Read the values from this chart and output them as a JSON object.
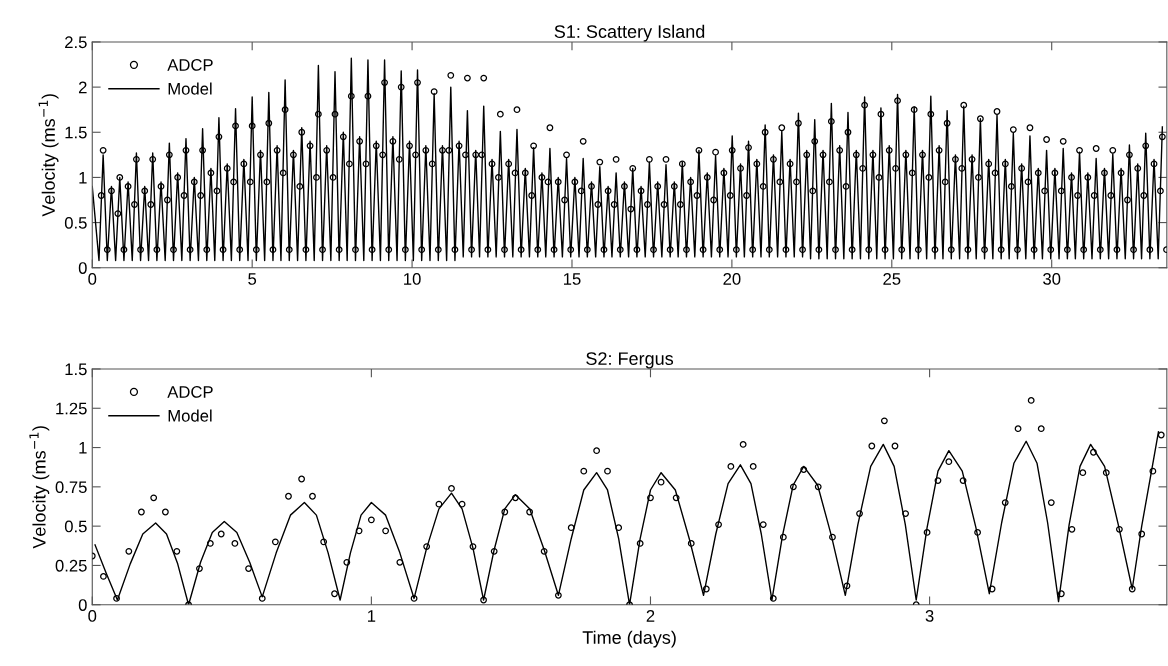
{
  "chart_data": [
    {
      "type": "line",
      "title": "S1: Scattery Island",
      "ylabel": "Velocity (ms$^{−1}$)",
      "xlim": [
        0,
        33.6
      ],
      "xticks": [
        0,
        5,
        10,
        15,
        20,
        25,
        30
      ],
      "ylim": [
        0,
        2.5
      ],
      "yticks": [
        0,
        0.5,
        1,
        1.5,
        2,
        2.5
      ],
      "legend": "top left",
      "series": [
        {
          "name": "ADCP",
          "type": "scatter",
          "marker": "circle",
          "color": "#000000",
          "x": [
            0.28,
            0.34,
            0.47,
            0.6,
            0.8,
            0.86,
            0.99,
            1.12,
            1.32,
            1.38,
            1.51,
            1.64,
            1.83,
            1.89,
            2.02,
            2.15,
            2.35,
            2.41,
            2.54,
            2.67,
            2.87,
            2.93,
            3.06,
            3.19,
            3.39,
            3.45,
            3.58,
            3.71,
            3.9,
            3.96,
            4.09,
            4.22,
            4.42,
            4.48,
            4.61,
            4.74,
            4.94,
            5.0,
            5.13,
            5.26,
            5.46,
            5.52,
            5.65,
            5.78,
            5.97,
            6.03,
            6.16,
            6.29,
            6.49,
            6.55,
            6.68,
            6.81,
            7.01,
            7.07,
            7.2,
            7.33,
            7.53,
            7.59,
            7.72,
            7.85,
            8.04,
            8.1,
            8.23,
            8.36,
            8.56,
            8.62,
            8.75,
            8.88,
            9.08,
            9.14,
            9.27,
            9.4,
            9.6,
            9.66,
            9.79,
            9.92,
            10.11,
            10.17,
            10.3,
            10.43,
            10.63,
            10.69,
            10.82,
            10.95,
            11.15,
            11.21,
            11.34,
            11.47,
            11.67,
            11.73,
            11.86,
            11.99,
            12.18,
            12.24,
            12.37,
            12.5,
            12.7,
            12.76,
            12.89,
            13.02,
            13.22,
            13.28,
            13.41,
            13.54,
            13.74,
            13.8,
            13.93,
            14.06,
            14.25,
            14.31,
            14.44,
            14.57,
            14.77,
            14.83,
            14.96,
            15.09,
            15.29,
            15.35,
            15.48,
            15.61,
            15.81,
            15.87,
            16.0,
            16.13,
            16.32,
            16.38,
            16.51,
            16.64,
            16.84,
            16.9,
            17.03,
            17.16,
            17.36,
            17.42,
            17.55,
            17.68,
            17.88,
            17.94,
            18.07,
            18.2,
            18.39,
            18.45,
            18.58,
            18.71,
            18.91,
            18.97,
            19.1,
            19.23,
            19.43,
            19.49,
            19.62,
            19.75,
            19.95,
            20.01,
            20.14,
            20.27,
            20.46,
            20.52,
            20.65,
            20.78,
            20.98,
            21.04,
            21.17,
            21.3,
            21.5,
            21.56,
            21.69,
            21.82,
            22.02,
            22.08,
            22.21,
            22.34,
            22.53,
            22.59,
            22.72,
            22.85,
            23.05,
            23.11,
            23.24,
            23.37,
            23.57,
            23.63,
            23.76,
            23.89,
            24.09,
            24.15,
            24.28,
            24.41,
            24.6,
            24.66,
            24.79,
            24.92,
            25.12,
            25.18,
            25.31,
            25.44,
            25.64,
            25.7,
            25.83,
            25.96,
            26.16,
            26.22,
            26.35,
            26.48,
            26.67,
            26.73,
            26.86,
            26.99,
            27.19,
            27.25,
            27.38,
            27.51,
            27.71,
            27.77,
            27.9,
            28.03,
            28.23,
            28.29,
            28.42,
            28.55,
            28.74,
            28.8,
            28.93,
            29.06,
            29.26,
            29.32,
            29.45,
            29.58,
            29.78,
            29.84,
            29.97,
            30.1,
            30.3,
            30.36,
            30.49,
            30.62,
            30.81,
            30.87,
            31.0,
            31.13,
            31.33,
            31.39,
            31.52,
            31.65,
            31.85,
            31.91,
            32.04,
            32.17,
            32.37,
            32.43,
            32.56,
            32.69,
            32.88,
            32.94,
            33.07,
            33.2,
            33.4,
            33.46,
            33.59
          ],
          "values": [
            0.8,
            1.3,
            0.2,
            0.85,
            0.6,
            1.0,
            0.2,
            0.9,
            0.7,
            1.2,
            0.2,
            0.85,
            0.7,
            1.2,
            0.2,
            0.9,
            0.75,
            1.25,
            0.2,
            1.0,
            0.8,
            1.3,
            0.2,
            0.95,
            0.8,
            1.3,
            0.2,
            1.05,
            0.85,
            1.45,
            0.2,
            1.1,
            0.95,
            1.57,
            0.2,
            1.15,
            0.95,
            1.57,
            0.2,
            1.25,
            0.95,
            1.6,
            0.2,
            1.3,
            1.05,
            1.75,
            0.2,
            1.25,
            0.9,
            1.5,
            0.2,
            1.35,
            1.0,
            1.7,
            0.2,
            1.3,
            1.0,
            1.7,
            0.2,
            1.45,
            1.15,
            1.9,
            0.2,
            1.4,
            1.15,
            1.9,
            0.2,
            1.35,
            1.25,
            2.05,
            0.2,
            1.4,
            1.2,
            2.0,
            0.2,
            1.35,
            1.25,
            2.05,
            0.2,
            1.3,
            1.15,
            1.95,
            0.2,
            1.3,
            1.3,
            2.13,
            0.2,
            1.35,
            1.25,
            2.1,
            0.2,
            1.25,
            1.25,
            2.1,
            0.2,
            1.15,
            1.0,
            1.7,
            0.2,
            1.15,
            1.05,
            1.75,
            0.2,
            1.05,
            0.8,
            1.35,
            0.2,
            1.0,
            0.95,
            1.55,
            0.2,
            0.95,
            0.75,
            1.25,
            0.2,
            0.95,
            0.85,
            1.4,
            0.2,
            0.9,
            0.7,
            1.17,
            0.2,
            0.85,
            0.7,
            1.2,
            0.2,
            0.9,
            0.65,
            1.1,
            0.2,
            0.85,
            0.7,
            1.2,
            0.2,
            0.9,
            0.7,
            1.2,
            0.2,
            0.9,
            0.7,
            1.15,
            0.2,
            0.95,
            0.8,
            1.3,
            0.2,
            1.0,
            0.75,
            1.28,
            0.2,
            1.05,
            0.8,
            1.3,
            0.2,
            1.1,
            0.8,
            1.33,
            0.2,
            1.15,
            0.9,
            1.5,
            0.2,
            1.2,
            0.95,
            1.55,
            0.2,
            1.15,
            0.95,
            1.6,
            0.2,
            1.25,
            0.85,
            1.4,
            0.2,
            1.25,
            0.95,
            1.62,
            0.2,
            1.3,
            0.9,
            1.5,
            0.2,
            1.25,
            1.1,
            1.8,
            0.2,
            1.25,
            1.0,
            1.7,
            0.2,
            1.3,
            1.1,
            1.85,
            0.2,
            1.25,
            1.05,
            1.75,
            0.2,
            1.25,
            1.0,
            1.7,
            0.2,
            1.3,
            0.95,
            1.6,
            0.2,
            1.2,
            1.1,
            1.8,
            0.2,
            1.2,
            1.0,
            1.65,
            0.2,
            1.15,
            1.05,
            1.73,
            0.2,
            1.15,
            0.9,
            1.53,
            0.2,
            1.1,
            0.95,
            1.55,
            0.2,
            1.05,
            0.85,
            1.42,
            0.2,
            1.05,
            0.85,
            1.4,
            0.2,
            1.0,
            0.8,
            1.3,
            0.2,
            1.0,
            0.8,
            1.32,
            0.2,
            1.05,
            0.8,
            1.3,
            0.2,
            1.05,
            0.75,
            1.25,
            0.2,
            1.1,
            0.8,
            1.35,
            0.2,
            1.15,
            0.85,
            1.45,
            0.2
          ]
        },
        {
          "name": "Model",
          "type": "line",
          "line_style": "solid",
          "color": "#000000",
          "x": [
            0.0,
            0.21,
            0.34,
            0.47,
            0.6,
            0.73,
            0.86,
            0.99,
            1.12,
            1.25,
            1.38,
            1.51,
            1.64,
            1.76,
            1.89,
            2.02,
            2.15,
            2.28,
            2.41,
            2.54,
            2.67,
            2.8,
            2.93,
            3.06,
            3.19,
            3.32,
            3.45,
            3.58,
            3.71,
            3.83,
            3.96,
            4.09,
            4.22,
            4.35,
            4.48,
            4.61,
            4.74,
            4.87,
            5.0,
            5.13,
            5.26,
            5.39,
            5.52,
            5.65,
            5.78,
            5.9,
            6.03,
            6.16,
            6.29,
            6.42,
            6.55,
            6.68,
            6.81,
            6.94,
            7.07,
            7.2,
            7.33,
            7.46,
            7.59,
            7.72,
            7.85,
            7.97,
            8.1,
            8.23,
            8.36,
            8.49,
            8.62,
            8.75,
            8.88,
            9.01,
            9.14,
            9.27,
            9.4,
            9.53,
            9.66,
            9.79,
            9.92,
            10.04,
            10.17,
            10.3,
            10.43,
            10.56,
            10.69,
            10.82,
            10.95,
            11.08,
            11.21,
            11.34,
            11.47,
            11.6,
            11.73,
            11.86,
            11.99,
            12.11,
            12.24,
            12.37,
            12.5,
            12.63,
            12.76,
            12.89,
            13.02,
            13.15,
            13.28,
            13.41,
            13.54,
            13.67,
            13.8,
            13.93,
            14.06,
            14.18,
            14.31,
            14.44,
            14.57,
            14.7,
            14.83,
            14.96,
            15.09,
            15.22,
            15.35,
            15.48,
            15.61,
            15.74,
            15.87,
            16.0,
            16.13,
            16.25,
            16.38,
            16.51,
            16.64,
            16.77,
            16.9,
            17.03,
            17.16,
            17.29,
            17.42,
            17.55,
            17.68,
            17.81,
            17.94,
            18.07,
            18.2,
            18.32,
            18.45,
            18.58,
            18.71,
            18.84,
            18.97,
            19.1,
            19.23,
            19.36,
            19.49,
            19.62,
            19.75,
            19.88,
            20.01,
            20.14,
            20.27,
            20.39,
            20.52,
            20.65,
            20.78,
            20.91,
            21.04,
            21.17,
            21.3,
            21.43,
            21.56,
            21.69,
            21.82,
            21.95,
            22.08,
            22.21,
            22.34,
            22.46,
            22.59,
            22.72,
            22.85,
            22.98,
            23.11,
            23.24,
            23.37,
            23.5,
            23.63,
            23.76,
            23.89,
            24.02,
            24.15,
            24.28,
            24.41,
            24.53,
            24.66,
            24.79,
            24.92,
            25.05,
            25.18,
            25.31,
            25.44,
            25.57,
            25.7,
            25.83,
            25.96,
            26.09,
            26.22,
            26.35,
            26.48,
            26.6,
            26.73,
            26.86,
            26.99,
            27.12,
            27.25,
            27.38,
            27.51,
            27.64,
            27.77,
            27.9,
            28.03,
            28.16,
            28.29,
            28.42,
            28.55,
            28.67,
            28.8,
            28.93,
            29.06,
            29.19,
            29.32,
            29.45,
            29.58,
            29.71,
            29.84,
            29.97,
            30.1,
            30.23,
            30.36,
            30.49,
            30.62,
            30.74,
            30.87,
            31.0,
            31.13,
            31.26,
            31.39,
            31.52,
            31.65,
            31.78,
            31.91,
            32.04,
            32.17,
            32.3,
            32.43,
            32.56,
            32.69,
            32.81,
            32.94,
            33.07,
            33.2,
            33.33,
            33.46
          ],
          "values": [
            0.9,
            0.08,
            1.25,
            0.08,
            0.9,
            0.08,
            1.0,
            0.08,
            0.95,
            0.08,
            1.27,
            0.08,
            0.9,
            0.08,
            1.27,
            0.08,
            0.95,
            0.08,
            1.38,
            0.08,
            1.05,
            0.08,
            1.43,
            0.08,
            1.0,
            0.08,
            1.54,
            0.08,
            1.1,
            0.08,
            1.66,
            0.08,
            1.15,
            0.08,
            1.76,
            0.08,
            1.2,
            0.08,
            1.89,
            0.08,
            1.3,
            0.08,
            1.94,
            0.08,
            1.35,
            0.08,
            2.08,
            0.08,
            1.3,
            0.08,
            1.55,
            0.08,
            1.4,
            0.08,
            2.24,
            0.08,
            1.35,
            0.08,
            2.17,
            0.08,
            1.5,
            0.08,
            2.32,
            0.08,
            1.45,
            0.08,
            2.3,
            0.08,
            1.4,
            0.08,
            2.3,
            0.08,
            1.45,
            0.08,
            2.18,
            0.08,
            1.4,
            0.08,
            2.19,
            0.08,
            1.35,
            0.08,
            1.93,
            0.08,
            1.35,
            0.08,
            2.0,
            0.08,
            1.4,
            0.12,
            1.74,
            0.12,
            1.3,
            0.12,
            1.79,
            0.12,
            1.2,
            0.12,
            1.51,
            0.12,
            1.2,
            0.12,
            1.53,
            0.12,
            1.1,
            0.12,
            1.33,
            0.12,
            1.05,
            0.12,
            1.32,
            0.12,
            1.0,
            0.12,
            1.21,
            0.12,
            1.0,
            0.12,
            1.21,
            0.12,
            0.95,
            0.12,
            1.12,
            0.12,
            0.9,
            0.12,
            1.05,
            0.12,
            0.95,
            0.12,
            1.1,
            0.12,
            0.9,
            0.12,
            1.17,
            0.12,
            0.95,
            0.12,
            1.14,
            0.12,
            0.95,
            0.12,
            1.17,
            0.12,
            1.0,
            0.12,
            1.3,
            0.12,
            1.05,
            0.12,
            1.24,
            0.12,
            1.1,
            0.12,
            1.46,
            0.12,
            1.15,
            0.12,
            1.4,
            0.12,
            1.2,
            0.12,
            1.58,
            0.12,
            1.25,
            0.12,
            1.51,
            0.12,
            1.2,
            0.12,
            1.71,
            0.12,
            1.3,
            0.1,
            1.64,
            0.1,
            1.3,
            0.1,
            1.82,
            0.1,
            1.35,
            0.1,
            1.72,
            0.1,
            1.3,
            0.1,
            1.89,
            0.1,
            1.3,
            0.1,
            1.77,
            0.1,
            1.35,
            0.1,
            1.92,
            0.1,
            1.3,
            0.1,
            1.78,
            0.1,
            1.3,
            0.1,
            1.9,
            0.1,
            1.35,
            0.1,
            1.74,
            0.1,
            1.25,
            0.1,
            1.79,
            0.1,
            1.25,
            0.1,
            1.65,
            0.1,
            1.2,
            0.1,
            1.69,
            0.1,
            1.2,
            0.1,
            1.49,
            0.1,
            1.15,
            0.1,
            1.46,
            0.1,
            1.1,
            0.1,
            1.3,
            0.1,
            1.1,
            0.1,
            1.32,
            0.1,
            1.05,
            0.1,
            1.28,
            0.1,
            1.05,
            0.1,
            1.21,
            0.1,
            1.1,
            0.1,
            1.26,
            0.1,
            1.1,
            0.1,
            1.36,
            0.1,
            1.15,
            0.1,
            1.49,
            0.1,
            1.2,
            0.1,
            1.56
          ]
        }
      ]
    },
    {
      "type": "line",
      "title": "S2: Fergus",
      "ylabel": "Velocity (ms$^{−1}$)",
      "xlabel": "Time (days)",
      "xlim": [
        0,
        3.85
      ],
      "xticks": [
        0,
        1,
        2,
        3
      ],
      "ylim": [
        0,
        1.5
      ],
      "yticks": [
        0,
        0.25,
        0.5,
        0.75,
        1,
        1.25,
        1.5
      ],
      "legend": "top left",
      "series": [
        {
          "name": "ADCP",
          "type": "scatter",
          "marker": "circle",
          "color": "#000000",
          "x": [
            0.0,
            0.04,
            0.087,
            0.131,
            0.176,
            0.22,
            0.262,
            0.303,
            0.345,
            0.384,
            0.423,
            0.462,
            0.511,
            0.56,
            0.609,
            0.656,
            0.703,
            0.75,
            0.789,
            0.829,
            0.868,
            0.912,
            0.956,
            1.0,
            1.051,
            1.102,
            1.153,
            1.198,
            1.242,
            1.287,
            1.325,
            1.364,
            1.402,
            1.44,
            1.478,
            1.516,
            1.567,
            1.619,
            1.67,
            1.716,
            1.761,
            1.807,
            1.846,
            1.886,
            1.925,
            1.963,
            2.0,
            2.038,
            2.092,
            2.146,
            2.2,
            2.244,
            2.288,
            2.332,
            2.368,
            2.404,
            2.44,
            2.476,
            2.512,
            2.549,
            2.601,
            2.652,
            2.704,
            2.749,
            2.793,
            2.838,
            2.876,
            2.914,
            2.952,
            2.991,
            3.03,
            3.069,
            3.12,
            3.172,
            3.224,
            3.271,
            3.317,
            3.364,
            3.4,
            3.436,
            3.472,
            3.51,
            3.549,
            3.587,
            3.633,
            3.68,
            3.726,
            3.76,
            3.8,
            3.83
          ],
          "values": [
            0.31,
            0.18,
            0.04,
            0.34,
            0.59,
            0.68,
            0.59,
            0.34,
            0.0,
            0.23,
            0.39,
            0.45,
            0.39,
            0.23,
            0.04,
            0.4,
            0.69,
            0.8,
            0.69,
            0.4,
            0.07,
            0.27,
            0.47,
            0.54,
            0.47,
            0.27,
            0.04,
            0.37,
            0.64,
            0.74,
            0.64,
            0.37,
            0.03,
            0.34,
            0.59,
            0.68,
            0.59,
            0.34,
            0.06,
            0.49,
            0.85,
            0.98,
            0.85,
            0.49,
            0.0,
            0.39,
            0.68,
            0.78,
            0.68,
            0.39,
            0.1,
            0.51,
            0.88,
            1.02,
            0.88,
            0.51,
            0.04,
            0.43,
            0.75,
            0.86,
            0.75,
            0.43,
            0.12,
            0.58,
            1.01,
            1.17,
            1.01,
            0.58,
            0.0,
            0.46,
            0.79,
            0.91,
            0.79,
            0.46,
            0.1,
            0.65,
            1.12,
            1.3,
            1.12,
            0.65,
            0.07,
            0.48,
            0.84,
            0.97,
            0.84,
            0.48,
            0.1,
            0.45,
            0.85,
            1.08
          ]
        },
        {
          "name": "Model",
          "type": "line",
          "line_style": "solid",
          "color": "#000000",
          "x": [
            0.01,
            0.05,
            0.09,
            0.136,
            0.181,
            0.227,
            0.266,
            0.306,
            0.345,
            0.388,
            0.43,
            0.473,
            0.518,
            0.564,
            0.609,
            0.659,
            0.71,
            0.76,
            0.803,
            0.845,
            0.888,
            0.925,
            0.963,
            1.0,
            1.051,
            1.102,
            1.153,
            1.198,
            1.242,
            1.287,
            1.325,
            1.364,
            1.402,
            1.44,
            1.478,
            1.516,
            1.567,
            1.619,
            1.67,
            1.716,
            1.761,
            1.807,
            1.846,
            1.886,
            1.925,
            1.963,
            2.0,
            2.038,
            2.089,
            2.139,
            2.19,
            2.234,
            2.278,
            2.322,
            2.36,
            2.397,
            2.435,
            2.473,
            2.511,
            2.549,
            2.599,
            2.648,
            2.698,
            2.743,
            2.789,
            2.834,
            2.873,
            2.913,
            2.952,
            2.991,
            3.03,
            3.069,
            3.117,
            3.166,
            3.214,
            3.258,
            3.302,
            3.346,
            3.385,
            3.423,
            3.462,
            3.5,
            3.539,
            3.577,
            3.627,
            3.676,
            3.726,
            3.76,
            3.8,
            3.82
          ],
          "values": [
            0.38,
            0.2,
            0.03,
            0.26,
            0.45,
            0.52,
            0.45,
            0.26,
            0.0,
            0.27,
            0.46,
            0.53,
            0.46,
            0.27,
            0.05,
            0.33,
            0.57,
            0.65,
            0.57,
            0.33,
            0.03,
            0.33,
            0.57,
            0.65,
            0.57,
            0.33,
            0.04,
            0.36,
            0.61,
            0.71,
            0.61,
            0.36,
            0.03,
            0.35,
            0.61,
            0.7,
            0.61,
            0.35,
            0.06,
            0.42,
            0.73,
            0.84,
            0.73,
            0.42,
            0.0,
            0.42,
            0.73,
            0.84,
            0.73,
            0.42,
            0.06,
            0.45,
            0.77,
            0.89,
            0.77,
            0.45,
            0.03,
            0.44,
            0.76,
            0.88,
            0.76,
            0.44,
            0.06,
            0.51,
            0.88,
            1.02,
            0.88,
            0.51,
            0.03,
            0.49,
            0.85,
            0.98,
            0.85,
            0.49,
            0.07,
            0.52,
            0.9,
            1.04,
            0.9,
            0.52,
            0.02,
            0.51,
            0.88,
            1.02,
            0.88,
            0.51,
            0.1,
            0.5,
            0.9,
            1.1
          ]
        }
      ]
    }
  ]
}
